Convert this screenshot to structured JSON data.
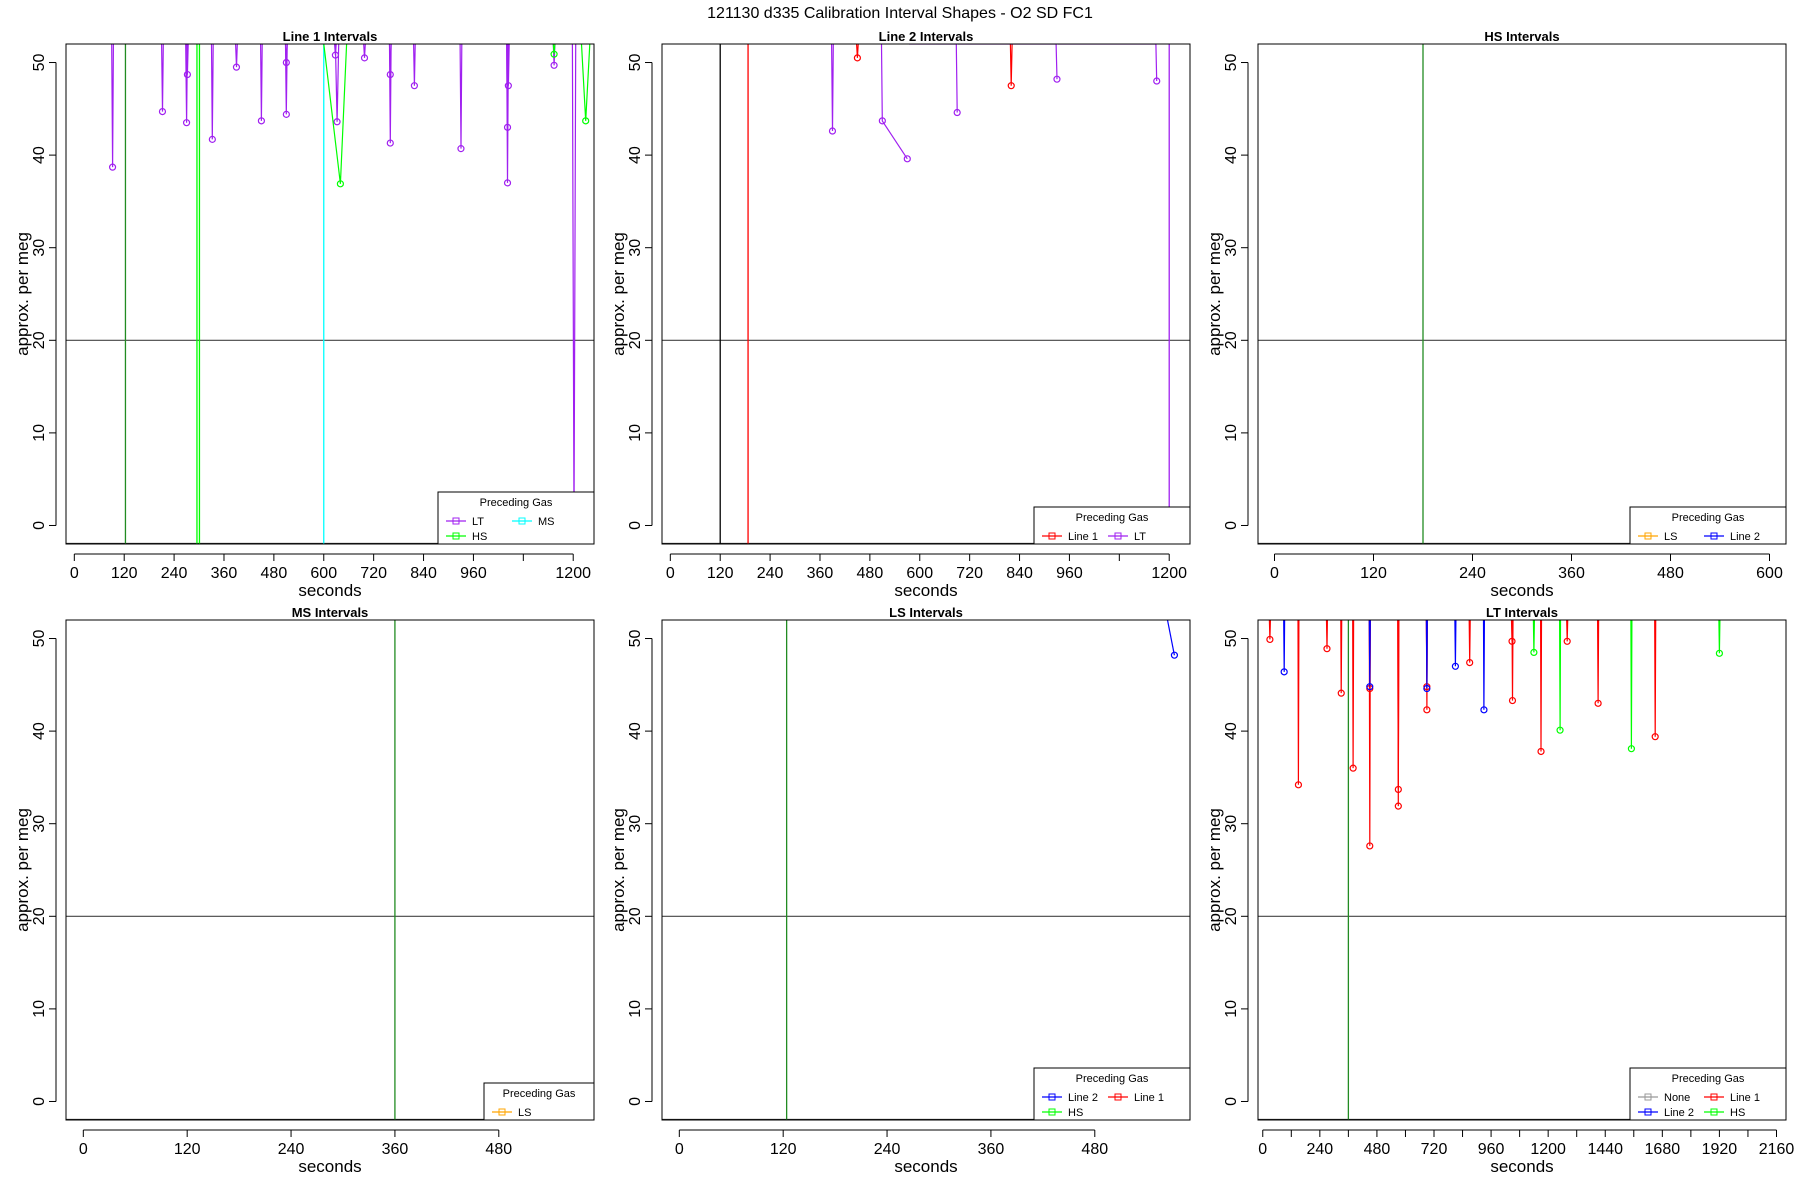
{
  "figure_title": "121130   d335   Calibration Interval Shapes - O2 SD FC1",
  "colors": {
    "LT": "#a020f0",
    "HS": "#00ff00",
    "MS": "#00ffff",
    "LS": "#ffa500",
    "Line 1": "#ff0000",
    "Line 2": "#0000ff",
    "None": "#999999",
    "frame": "#000000",
    "ref_line": "#444444",
    "calib_line": "#228b22"
  },
  "chart_data": [
    {
      "type": "line",
      "title": "Line 1 Intervals",
      "xlabel": "seconds",
      "ylabel": "approx. per meg",
      "xlim": [
        -20,
        1250
      ],
      "ylim": [
        -2,
        52
      ],
      "xticks": [
        0,
        120,
        240,
        360,
        480,
        600,
        720,
        840,
        960,
        1080,
        1200
      ],
      "xtick_labels": [
        "0",
        "120",
        "240",
        "360",
        "480",
        "600",
        "720",
        "840",
        "960",
        "",
        "1200"
      ],
      "yticks": [
        0,
        10,
        20,
        30,
        40,
        50
      ],
      "ref_y": 20,
      "legend": {
        "title": "Preceding Gas",
        "position": "bottom-right",
        "cols": 2,
        "entries": [
          "LT",
          "MS",
          "HS"
        ]
      },
      "series": [
        {
          "name": "LT",
          "color": "#a020f0",
          "points": [
            [
              90,
              52
            ],
            [
              92,
              38.7
            ],
            [
              94,
              52
            ],
            [
              210,
              52
            ],
            [
              212,
              44.7
            ],
            [
              214,
              52
            ],
            [
              268,
              52
            ],
            [
              270,
              43.5
            ],
            [
              272,
              52
            ],
            [
              270,
              52
            ],
            [
              272,
              48.7
            ],
            [
              274,
              52
            ],
            [
              330,
              52
            ],
            [
              332,
              41.7
            ],
            [
              334,
              52
            ],
            [
              388,
              52
            ],
            [
              390,
              49.5
            ],
            [
              392,
              52
            ],
            [
              448,
              52
            ],
            [
              450,
              43.7
            ],
            [
              452,
              52
            ],
            [
              508,
              52
            ],
            [
              510,
              44.4
            ],
            [
              512,
              52
            ],
            [
              508,
              52
            ],
            [
              510,
              50
            ],
            [
              512,
              52
            ],
            [
              628,
              52
            ],
            [
              632,
              43.6
            ],
            [
              636,
              52
            ],
            [
              626,
              52
            ],
            [
              628,
              50.8
            ],
            [
              630,
              52
            ],
            [
              696,
              52
            ],
            [
              698,
              50.5
            ],
            [
              700,
              52
            ],
            [
              758,
              52
            ],
            [
              760,
              41.3
            ],
            [
              762,
              52
            ],
            [
              758,
              52
            ],
            [
              760,
              48.7
            ],
            [
              762,
              52
            ],
            [
              816,
              52
            ],
            [
              818,
              47.5
            ],
            [
              820,
              52
            ],
            [
              928,
              52
            ],
            [
              930,
              40.7
            ],
            [
              932,
              52
            ],
            [
              1040,
              52
            ],
            [
              1042,
              37
            ],
            [
              1044,
              52
            ],
            [
              1040,
              52
            ],
            [
              1042,
              43
            ],
            [
              1044,
              52
            ],
            [
              1042,
              52
            ],
            [
              1044,
              47.5
            ],
            [
              1046,
              52
            ],
            [
              1152,
              52
            ],
            [
              1154,
              49.7
            ],
            [
              1156,
              52
            ],
            [
              1198,
              52
            ],
            [
              1202,
              0
            ],
            [
              1206,
              52
            ]
          ]
        },
        {
          "name": "HS",
          "color": "#00ff00",
          "points": [
            [
              600,
              52
            ],
            [
              640,
              36.9
            ],
            [
              655,
              52
            ],
            [
              1152,
              52
            ],
            [
              1154,
              50.9
            ],
            [
              1156,
              52
            ],
            [
              1220,
              52
            ],
            [
              1230,
              43.7
            ],
            [
              1240,
              52
            ]
          ]
        }
      ],
      "vlines": [
        {
          "x": 123,
          "color": "#228b22"
        },
        {
          "x": 295,
          "color": "#00ff00"
        },
        {
          "x": 301,
          "color": "#00ff00"
        },
        {
          "x": 600,
          "color": "#00ffff"
        }
      ]
    },
    {
      "type": "line",
      "title": "Line 2 Intervals",
      "xlabel": "seconds",
      "ylabel": "approx. per meg",
      "xlim": [
        -20,
        1250
      ],
      "ylim": [
        -2,
        52
      ],
      "xticks": [
        0,
        120,
        240,
        360,
        480,
        600,
        720,
        840,
        960,
        1080,
        1200
      ],
      "xtick_labels": [
        "0",
        "120",
        "240",
        "360",
        "480",
        "600",
        "720",
        "840",
        "960",
        "",
        "1200"
      ],
      "yticks": [
        0,
        10,
        20,
        30,
        40,
        50
      ],
      "ref_y": 20,
      "legend": {
        "title": "Preceding Gas",
        "position": "bottom-right",
        "cols": 2,
        "entries": [
          "Line 1",
          "LT"
        ]
      },
      "series": [
        {
          "name": "Line 1",
          "color": "#ff0000",
          "points": [
            [
              448,
              52
            ],
            [
              450,
              50.5
            ],
            [
              452,
              52
            ],
            [
              818,
              52
            ],
            [
              820,
              47.5
            ],
            [
              822,
              52
            ]
          ]
        },
        {
          "name": "LT",
          "color": "#a020f0",
          "points": [
            [
              388,
              52
            ],
            [
              390,
              42.6
            ],
            [
              392,
              52
            ],
            [
              508,
              52
            ],
            [
              510,
              43.7
            ],
            [
              570,
              39.6
            ],
            [
              574,
              52
            ],
            [
              688,
              52
            ],
            [
              690,
              44.6
            ],
            [
              692,
              52
            ],
            [
              928,
              52
            ],
            [
              930,
              48.2
            ],
            [
              932,
              52
            ],
            [
              1168,
              52
            ],
            [
              1170,
              48
            ],
            [
              1172,
              52
            ]
          ]
        }
      ],
      "vlines": [
        {
          "x": 120,
          "color": "#000000"
        },
        {
          "x": 187,
          "color": "#ff0000"
        },
        {
          "x": 1200,
          "color": "#a020f0"
        }
      ]
    },
    {
      "type": "line",
      "title": "HS Intervals",
      "xlabel": "seconds",
      "ylabel": "approx. per meg",
      "xlim": [
        -20,
        620
      ],
      "ylim": [
        -2,
        52
      ],
      "xticks": [
        0,
        120,
        240,
        360,
        480,
        600
      ],
      "xtick_labels": [
        "0",
        "120",
        "240",
        "360",
        "480",
        "600"
      ],
      "yticks": [
        0,
        10,
        20,
        30,
        40,
        50
      ],
      "ref_y": 20,
      "legend": {
        "title": "Preceding Gas",
        "position": "bottom-right",
        "cols": 2,
        "entries": [
          "LS",
          "Line 2"
        ]
      },
      "series": [],
      "vlines": [
        {
          "x": 180,
          "color": "#228b22"
        }
      ]
    },
    {
      "type": "line",
      "title": "MS Intervals",
      "xlabel": "seconds",
      "ylabel": "approx. per meg",
      "xlim": [
        -20,
        590
      ],
      "ylim": [
        -2,
        52
      ],
      "xticks": [
        0,
        120,
        240,
        360,
        480
      ],
      "xtick_labels": [
        "0",
        "120",
        "240",
        "360",
        "480"
      ],
      "yticks": [
        0,
        10,
        20,
        30,
        40,
        50
      ],
      "ref_y": 20,
      "legend": {
        "title": "Preceding Gas",
        "position": "bottom-right",
        "cols": 1,
        "entries": [
          "LS"
        ]
      },
      "series": [],
      "vlines": [
        {
          "x": 360,
          "color": "#228b22"
        }
      ]
    },
    {
      "type": "line",
      "title": "LS Intervals",
      "xlabel": "seconds",
      "ylabel": "approx. per meg",
      "xlim": [
        -20,
        590
      ],
      "ylim": [
        -2,
        52
      ],
      "xticks": [
        0,
        120,
        240,
        360,
        480
      ],
      "xtick_labels": [
        "0",
        "120",
        "240",
        "360",
        "480"
      ],
      "yticks": [
        0,
        10,
        20,
        30,
        40,
        50
      ],
      "ref_y": 20,
      "legend": {
        "title": "Preceding Gas",
        "position": "bottom-right",
        "cols": 2,
        "entries": [
          "Line 2",
          "Line 1",
          "HS"
        ]
      },
      "series": [
        {
          "name": "Line 2",
          "color": "#0000ff",
          "points": [
            [
              564,
              52
            ],
            [
              572,
              48.2
            ]
          ]
        }
      ],
      "vlines": [
        {
          "x": 124,
          "color": "#228b22"
        }
      ]
    },
    {
      "type": "line",
      "title": "LT Intervals",
      "xlabel": "seconds",
      "ylabel": "approx. per meg",
      "xlim": [
        -20,
        2200
      ],
      "ylim": [
        -2,
        52
      ],
      "xticks": [
        0,
        120,
        240,
        360,
        480,
        600,
        720,
        840,
        960,
        1080,
        1200,
        1320,
        1440,
        1560,
        1680,
        1800,
        1920,
        2040,
        2160
      ],
      "xtick_labels": [
        "0",
        "",
        "240",
        "",
        "480",
        "",
        "720",
        "",
        "960",
        "",
        "1200",
        "",
        "1440",
        "",
        "1680",
        "",
        "1920",
        "",
        "2160"
      ],
      "yticks": [
        0,
        10,
        20,
        30,
        40,
        50
      ],
      "ref_y": 20,
      "legend": {
        "title": "Preceding Gas",
        "position": "bottom-right",
        "cols": 2,
        "entries": [
          "None",
          "Line 1",
          "Line 2",
          "HS"
        ]
      },
      "series": [
        {
          "name": "Line 1",
          "color": "#ff0000",
          "points": [
            [
              28,
              52
            ],
            [
              30,
              49.9
            ],
            [
              32,
              52
            ],
            [
              148,
              52
            ],
            [
              150,
              34.2
            ],
            [
              152,
              52
            ],
            [
              268,
              52
            ],
            [
              270,
              48.9
            ],
            [
              272,
              52
            ],
            [
              328,
              52
            ],
            [
              330,
              44.1
            ],
            [
              332,
              52
            ],
            [
              378,
              52
            ],
            [
              380,
              36
            ],
            [
              382,
              52
            ],
            [
              448,
              52
            ],
            [
              450,
              27.6
            ],
            [
              452,
              52
            ],
            [
              448,
              52
            ],
            [
              450,
              44.6
            ],
            [
              452,
              52
            ],
            [
              568,
              52
            ],
            [
              570,
              31.9
            ],
            [
              572,
              52
            ],
            [
              568,
              52
            ],
            [
              570,
              33.7
            ],
            [
              572,
              52
            ],
            [
              688,
              52
            ],
            [
              690,
              42.3
            ],
            [
              692,
              52
            ],
            [
              688,
              52
            ],
            [
              690,
              44.8
            ],
            [
              692,
              52
            ],
            [
              868,
              52
            ],
            [
              870,
              47.4
            ],
            [
              872,
              52
            ],
            [
              1048,
              52
            ],
            [
              1050,
              43.3
            ],
            [
              1052,
              52
            ],
            [
              1046,
              52
            ],
            [
              1048,
              49.7
            ],
            [
              1050,
              52
            ],
            [
              1168,
              52
            ],
            [
              1170,
              37.8
            ],
            [
              1172,
              52
            ],
            [
              1278,
              52
            ],
            [
              1280,
              49.7
            ],
            [
              1282,
              52
            ],
            [
              1408,
              52
            ],
            [
              1410,
              43
            ],
            [
              1412,
              52
            ],
            [
              1648,
              52
            ],
            [
              1650,
              39.4
            ],
            [
              1652,
              52
            ]
          ]
        },
        {
          "name": "Line 2",
          "color": "#0000ff",
          "points": [
            [
              88,
              52
            ],
            [
              90,
              46.4
            ],
            [
              92,
              52
            ],
            [
              448,
              52
            ],
            [
              450,
              44.8
            ],
            [
              452,
              52
            ],
            [
              688,
              52
            ],
            [
              690,
              44.6
            ],
            [
              692,
              52
            ],
            [
              808,
              52
            ],
            [
              810,
              47
            ],
            [
              812,
              52
            ],
            [
              928,
              52
            ],
            [
              930,
              42.3
            ],
            [
              932,
              52
            ]
          ]
        },
        {
          "name": "HS",
          "color": "#00ff00",
          "points": [
            [
              1138,
              52
            ],
            [
              1140,
              48.5
            ],
            [
              1142,
              52
            ],
            [
              1248,
              52
            ],
            [
              1250,
              40.1
            ],
            [
              1252,
              52
            ],
            [
              1548,
              52
            ],
            [
              1550,
              38.1
            ],
            [
              1552,
              52
            ],
            [
              1918,
              52
            ],
            [
              1920,
              48.4
            ],
            [
              1922,
              52
            ]
          ]
        }
      ],
      "vlines": [
        {
          "x": 360,
          "color": "#228b22"
        }
      ]
    }
  ]
}
